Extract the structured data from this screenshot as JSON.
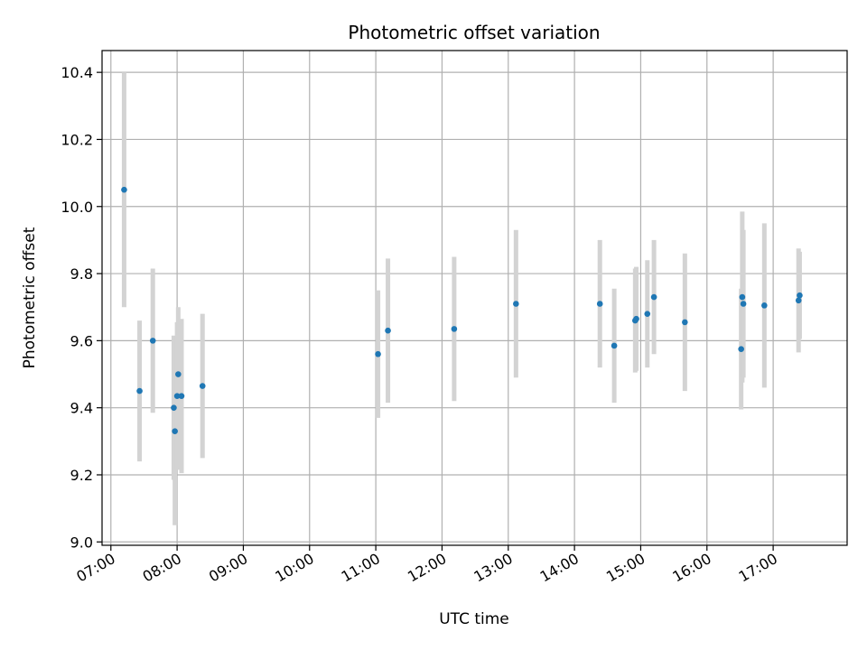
{
  "chart_data": {
    "type": "scatter",
    "title": "Photometric offset variation",
    "xlabel": "UTC time",
    "ylabel": "Photometric offset",
    "xlim": [
      "06:52",
      "18:07"
    ],
    "ylim": [
      8.99,
      10.465
    ],
    "x_ticks": [
      "07:00",
      "08:00",
      "09:00",
      "10:00",
      "11:00",
      "12:00",
      "13:00",
      "14:00",
      "15:00",
      "16:00",
      "17:00"
    ],
    "y_ticks": [
      "9.0",
      "9.2",
      "9.4",
      "9.6",
      "9.8",
      "10.0",
      "10.2",
      "10.4"
    ],
    "grid": true,
    "colors": {
      "point": "#1f77b4",
      "errorbar": "#d3d3d3",
      "grid": "#b0b0b0"
    },
    "points": [
      {
        "time": "07:12",
        "y": 10.05,
        "err": 0.35
      },
      {
        "time": "07:26",
        "y": 9.45,
        "err": 0.21
      },
      {
        "time": "07:38",
        "y": 9.6,
        "err": 0.215
      },
      {
        "time": "07:57",
        "y": 9.4,
        "err": 0.215
      },
      {
        "time": "07:58",
        "y": 9.33,
        "err": 0.28
      },
      {
        "time": "08:00",
        "y": 9.435,
        "err": 0.22
      },
      {
        "time": "08:01",
        "y": 9.5,
        "err": 0.2
      },
      {
        "time": "08:04",
        "y": 9.435,
        "err": 0.23
      },
      {
        "time": "08:23",
        "y": 9.465,
        "err": 0.215
      },
      {
        "time": "11:02",
        "y": 9.56,
        "err": 0.19
      },
      {
        "time": "11:11",
        "y": 9.63,
        "err": 0.215
      },
      {
        "time": "12:11",
        "y": 9.635,
        "err": 0.215
      },
      {
        "time": "13:07",
        "y": 9.71,
        "err": 0.22
      },
      {
        "time": "14:23",
        "y": 9.71,
        "err": 0.19
      },
      {
        "time": "14:36",
        "y": 9.585,
        "err": 0.17
      },
      {
        "time": "14:55",
        "y": 9.66,
        "err": 0.155
      },
      {
        "time": "14:56",
        "y": 9.665,
        "err": 0.155
      },
      {
        "time": "15:06",
        "y": 9.68,
        "err": 0.16
      },
      {
        "time": "15:12",
        "y": 9.73,
        "err": 0.17
      },
      {
        "time": "15:40",
        "y": 9.655,
        "err": 0.205
      },
      {
        "time": "16:31",
        "y": 9.575,
        "err": 0.18
      },
      {
        "time": "16:32",
        "y": 9.73,
        "err": 0.255
      },
      {
        "time": "16:33",
        "y": 9.71,
        "err": 0.22
      },
      {
        "time": "16:52",
        "y": 9.705,
        "err": 0.245
      },
      {
        "time": "17:23",
        "y": 9.72,
        "err": 0.155
      },
      {
        "time": "17:24",
        "y": 9.735,
        "err": 0.13
      }
    ]
  }
}
